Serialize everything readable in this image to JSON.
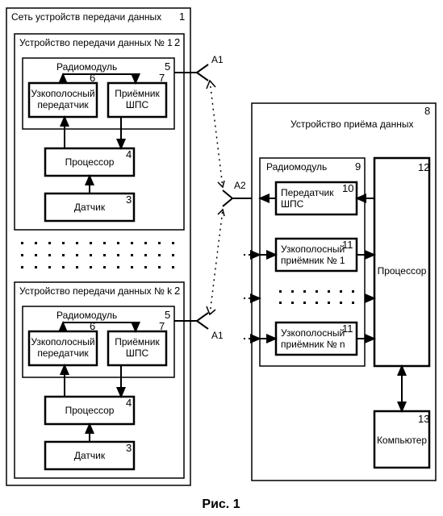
{
  "caption": "Рис. 1",
  "network": {
    "title": "Сеть устройств передачи данных",
    "num": "1"
  },
  "tx": {
    "title1": "Устройство передачи данных № 1",
    "titlek": "Устройство передачи данных № k",
    "num": "2",
    "radio": {
      "label": "Радиомодуль",
      "num": "5"
    },
    "narrowband": {
      "line1": "Узкополосный",
      "line2": "передатчик",
      "num": "6"
    },
    "rx": {
      "line1": "Приёмник",
      "line2": "ШПС",
      "num": "7"
    },
    "cpu": {
      "label": "Процессор",
      "num": "4"
    },
    "sensor": {
      "label": "Датчик",
      "num": "3"
    }
  },
  "antenna": {
    "a1": "A1",
    "a2": "A2"
  },
  "rx_dev": {
    "title": "Устройство приёма данных",
    "num": "8",
    "radio": {
      "label": "Радиомодуль",
      "num": "9"
    },
    "txshps": {
      "line1": "Передатчик",
      "line2": "ШПС",
      "num": "10"
    },
    "nb1": {
      "line1": "Узкополосный",
      "line2": "приёмник № 1",
      "num": "11"
    },
    "nbn": {
      "line1": "Узкополосный",
      "line2": "приёмник № n",
      "num": "11"
    },
    "cpu": {
      "label": "Процессор",
      "num": "12"
    },
    "computer": {
      "label": "Компьютер",
      "num": "13"
    }
  },
  "style": {
    "stroke": "#000000",
    "bg": "#ffffff",
    "box_stroke_width": 2.5,
    "thin_stroke_width": 1.5,
    "label_fontsize": 12,
    "num_fontsize": 13,
    "caption_fontsize": 16
  }
}
